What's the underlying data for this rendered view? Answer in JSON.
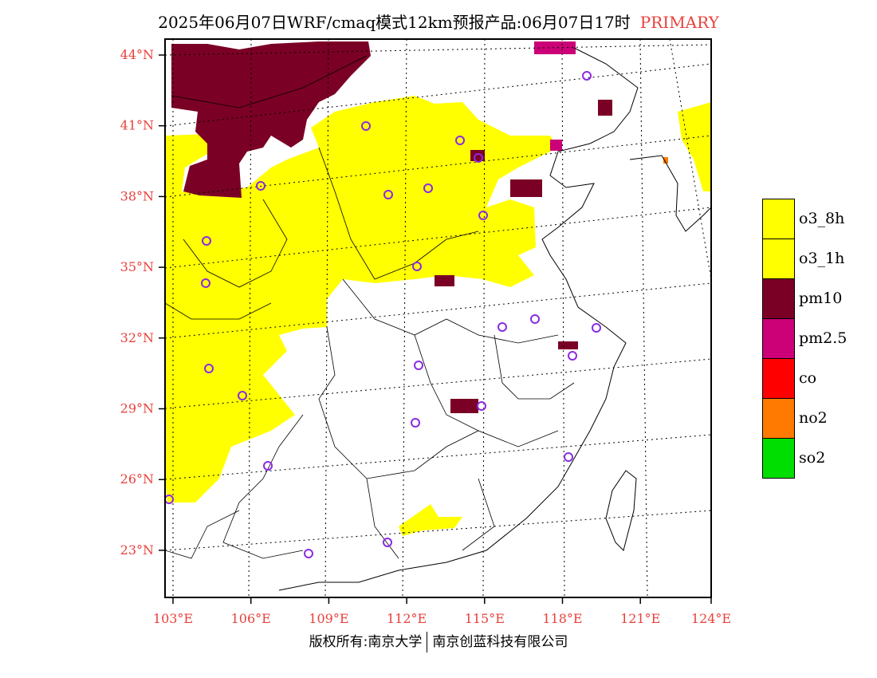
{
  "header": {
    "title": "2025年06月07日WRF/cmaq模式12km预报产品:06月07日17时",
    "badge": "PRIMARY",
    "badge_color": "#e8413c"
  },
  "map": {
    "lat_labels": [
      "44°N",
      "41°N",
      "38°N",
      "35°N",
      "32°N",
      "29°N",
      "26°N",
      "23°N"
    ],
    "lon_labels": [
      "103°E",
      "106°E",
      "109°E",
      "112°E",
      "115°E",
      "118°E",
      "121°E",
      "124°E"
    ],
    "lat_values": [
      44,
      41,
      38,
      35,
      32,
      29,
      26,
      23
    ],
    "lon_values": [
      103,
      106,
      109,
      112,
      115,
      118,
      121,
      124
    ],
    "lat_range": [
      21,
      44.5
    ],
    "lon_range": [
      102.7,
      124
    ],
    "station_marker": "purple-circle",
    "station_color": "#8a2be2"
  },
  "legend": {
    "items": [
      {
        "label": "o3_8h",
        "color": "#ffff00"
      },
      {
        "label": "o3_1h",
        "color": "#ffff00"
      },
      {
        "label": "pm10",
        "color": "#7b0025"
      },
      {
        "label": "pm2.5",
        "color": "#cc0077"
      },
      {
        "label": "co",
        "color": "#ff0000"
      },
      {
        "label": "no2",
        "color": "#ff7a00"
      },
      {
        "label": "so2",
        "color": "#00dd00"
      }
    ]
  },
  "footer": {
    "left": "版权所有:南京大学",
    "right": "南京创蓝科技有限公司"
  }
}
